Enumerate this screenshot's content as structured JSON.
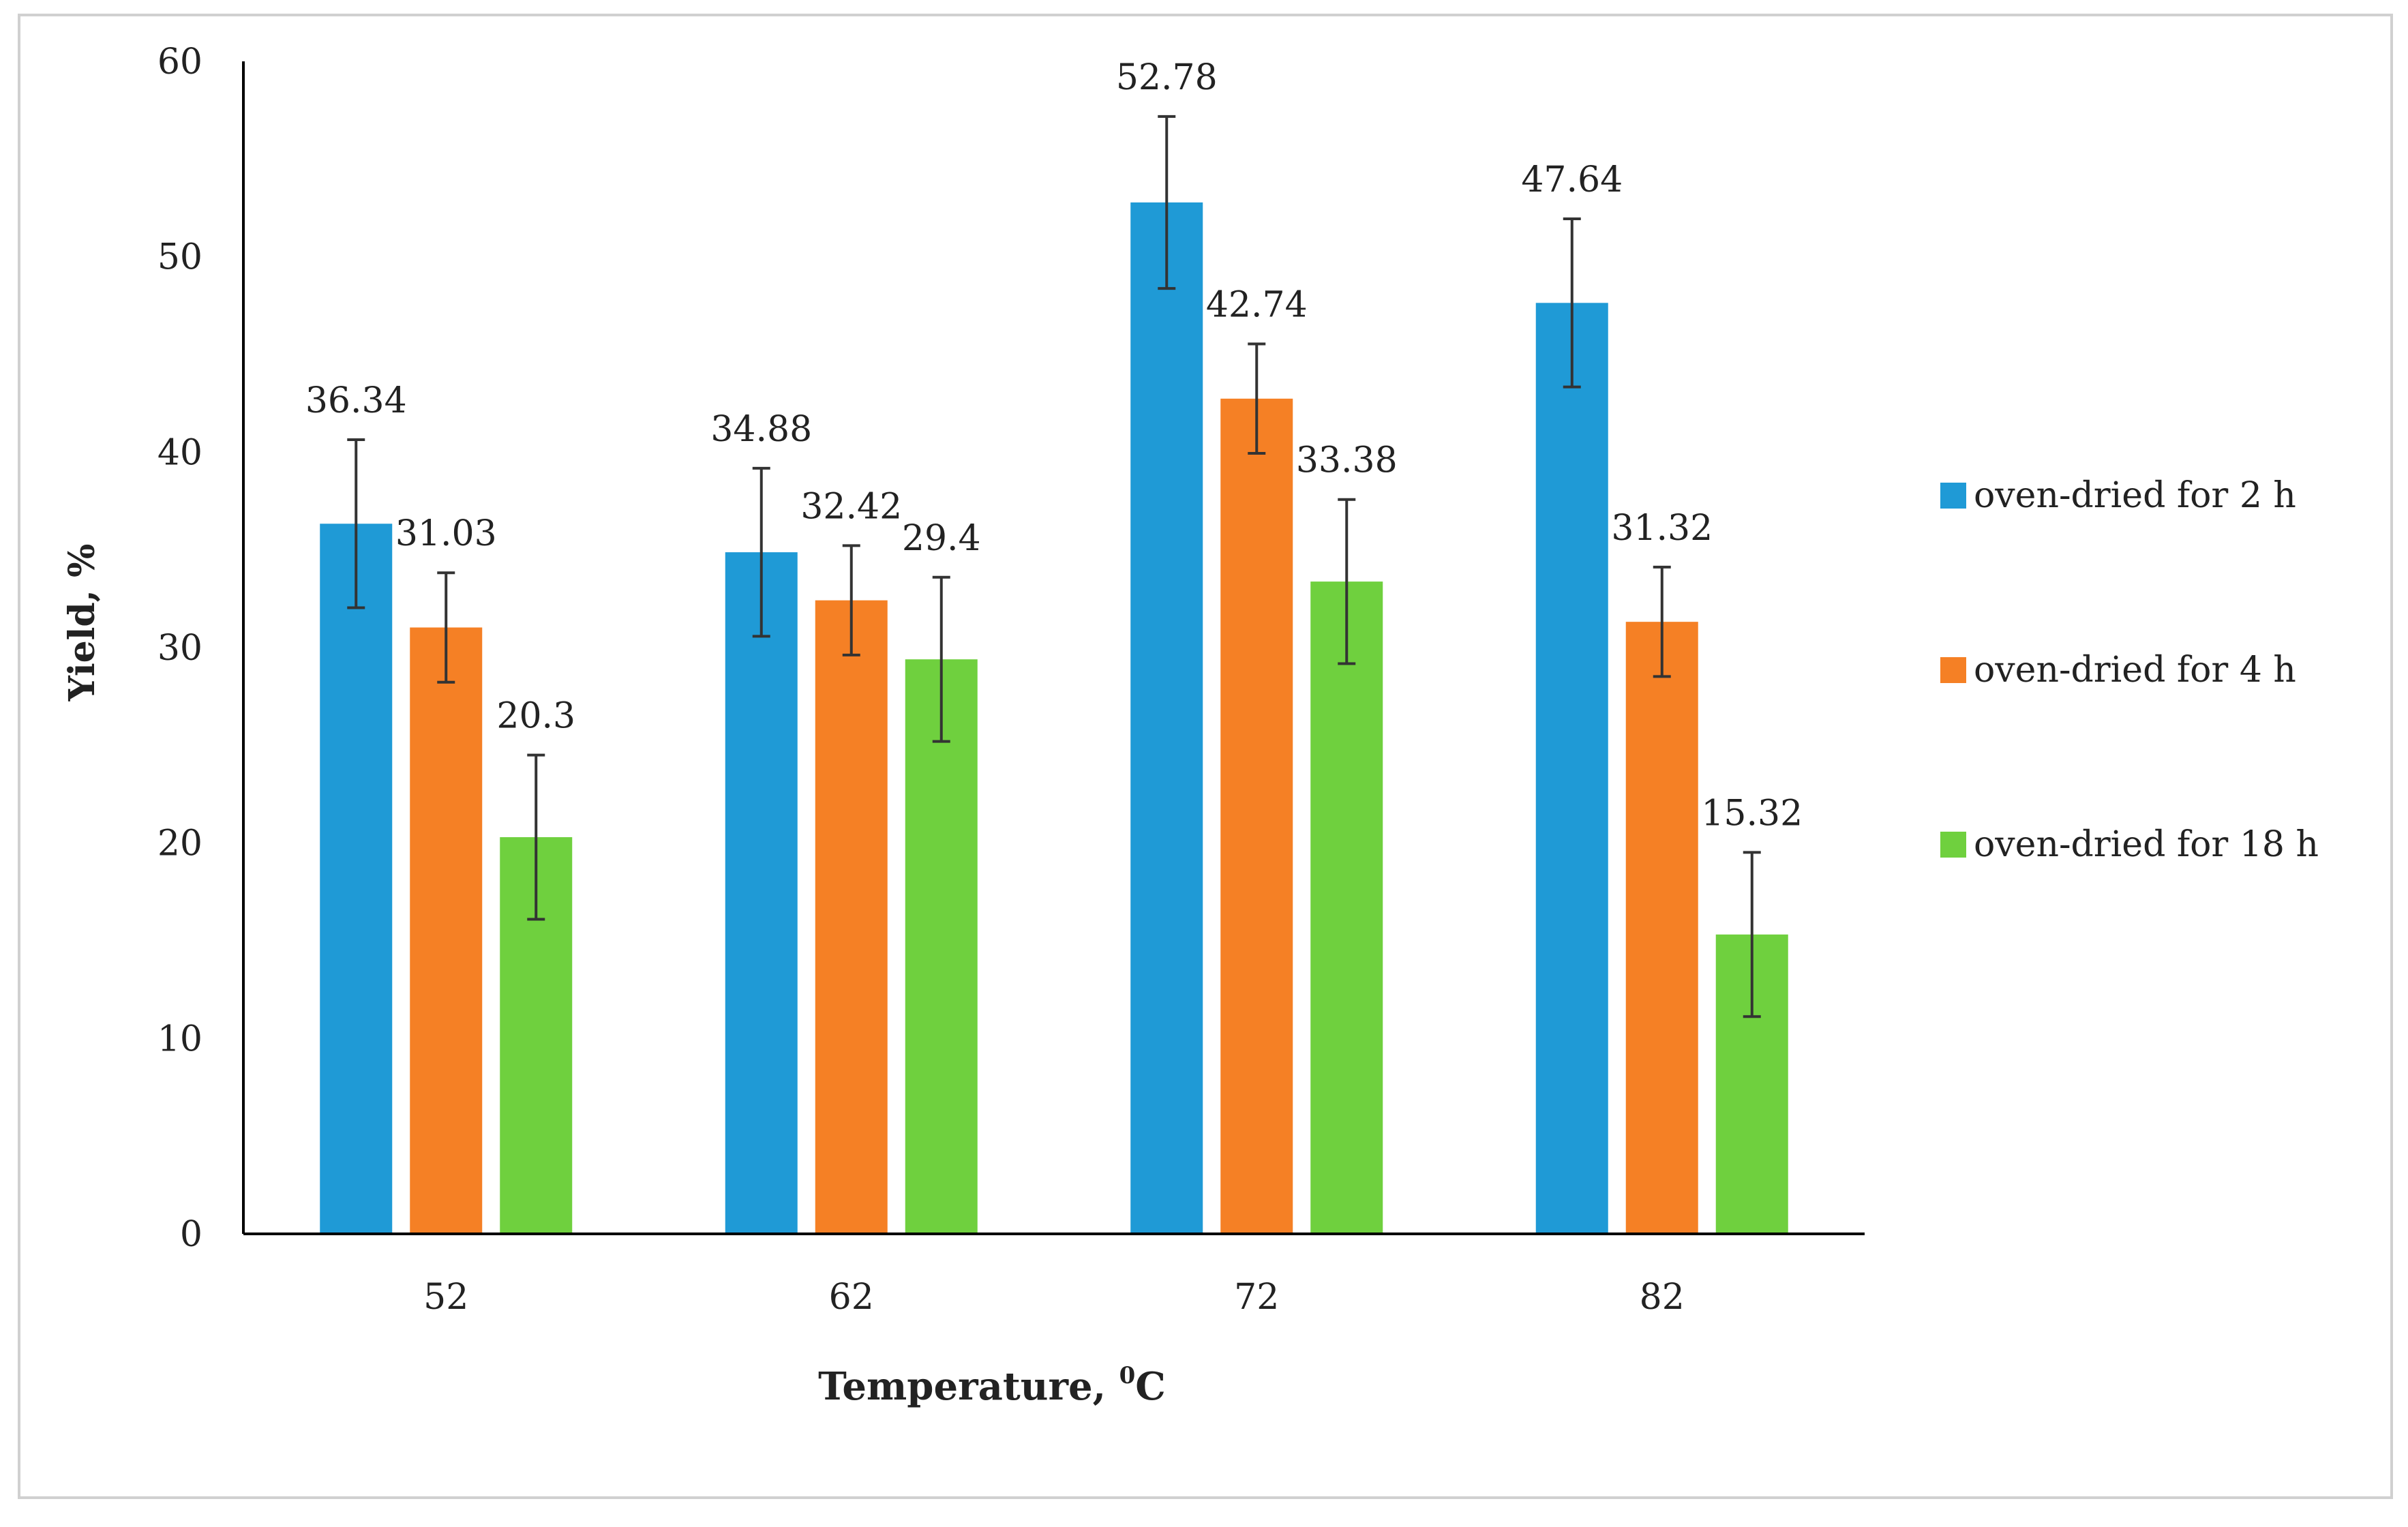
{
  "chart_data": {
    "type": "bar",
    "title": "",
    "xlabel": "Temperature, ",
    "xlabel_sup": "0",
    "xlabel_unit": "C",
    "ylabel": "Yield, %",
    "ylim": [
      0,
      60
    ],
    "yticks": [
      0,
      10,
      20,
      30,
      40,
      50,
      60
    ],
    "grid": false,
    "legend_position": "right",
    "categories": [
      "52",
      "62",
      "72",
      "82"
    ],
    "series": [
      {
        "name": "oven-dried for 2 h",
        "color": "#1f9ad6",
        "values": [
          36.34,
          34.88,
          52.78,
          47.64
        ],
        "labels": [
          "36.34",
          "34.88",
          "52.78",
          "47.64"
        ],
        "error": [
          4.3,
          4.3,
          4.4,
          4.3
        ]
      },
      {
        "name": "oven-dried for 4 h",
        "color": "#f58025",
        "values": [
          31.03,
          32.42,
          42.74,
          31.32
        ],
        "labels": [
          "31.03",
          "32.42",
          "42.74",
          "31.32"
        ],
        "error": [
          2.8,
          2.8,
          2.8,
          2.8
        ]
      },
      {
        "name": "oven-dried for 18 h",
        "color": "#6fd03e",
        "values": [
          20.3,
          29.4,
          33.38,
          15.32
        ],
        "labels": [
          "20.3",
          "29.4",
          "33.38",
          "15.32"
        ],
        "error": [
          4.2,
          4.2,
          4.2,
          4.2
        ]
      }
    ]
  }
}
